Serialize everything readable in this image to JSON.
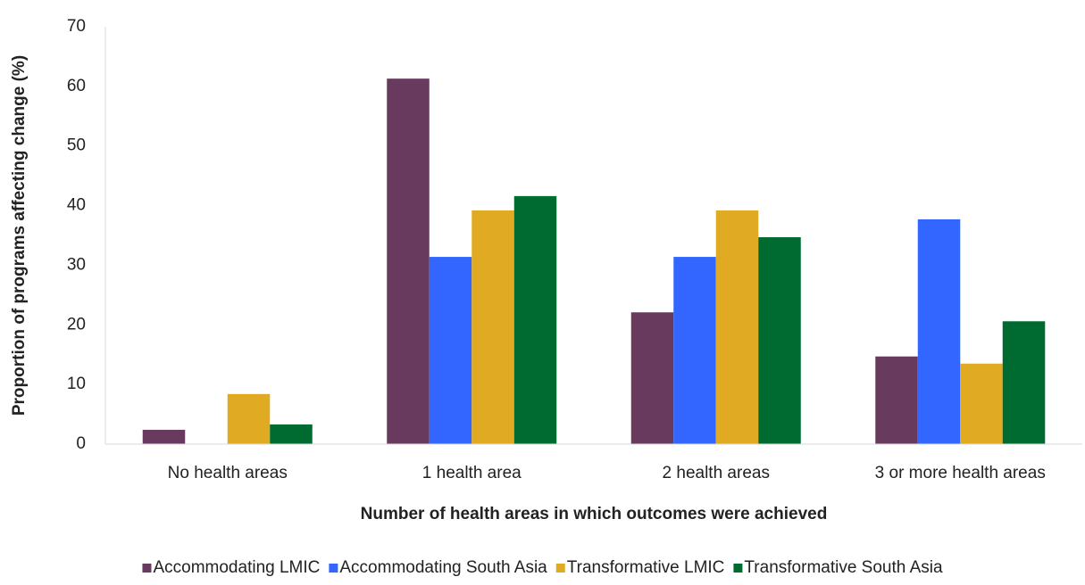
{
  "chart_data": {
    "type": "bar",
    "x_label": "Number of health areas in which outcomes were achieved",
    "y_label": "Proportion of programs affecting change (%)",
    "categories": [
      "No health areas",
      "1 health area",
      "2 health areas",
      "3 or more health areas"
    ],
    "series": [
      {
        "name": "Accommodating LMIC",
        "color": "#673a5e",
        "values": [
          2.4,
          61.3,
          22.1,
          14.7
        ]
      },
      {
        "name": "Accommodating South Asia",
        "color": "#3366ff",
        "values": [
          0,
          31.4,
          31.4,
          37.7
        ]
      },
      {
        "name": "Transformative LMIC",
        "color": "#e0ab23",
        "values": [
          8.4,
          39.2,
          39.2,
          13.5
        ]
      },
      {
        "name": "Transformative South Asia",
        "color": "#006b31",
        "values": [
          3.3,
          41.6,
          34.7,
          20.6
        ]
      }
    ],
    "ylim": [
      0,
      70
    ],
    "yticks": [
      0,
      10,
      20,
      30,
      40,
      50,
      60,
      70
    ],
    "grid": false,
    "legend": "bottom"
  }
}
